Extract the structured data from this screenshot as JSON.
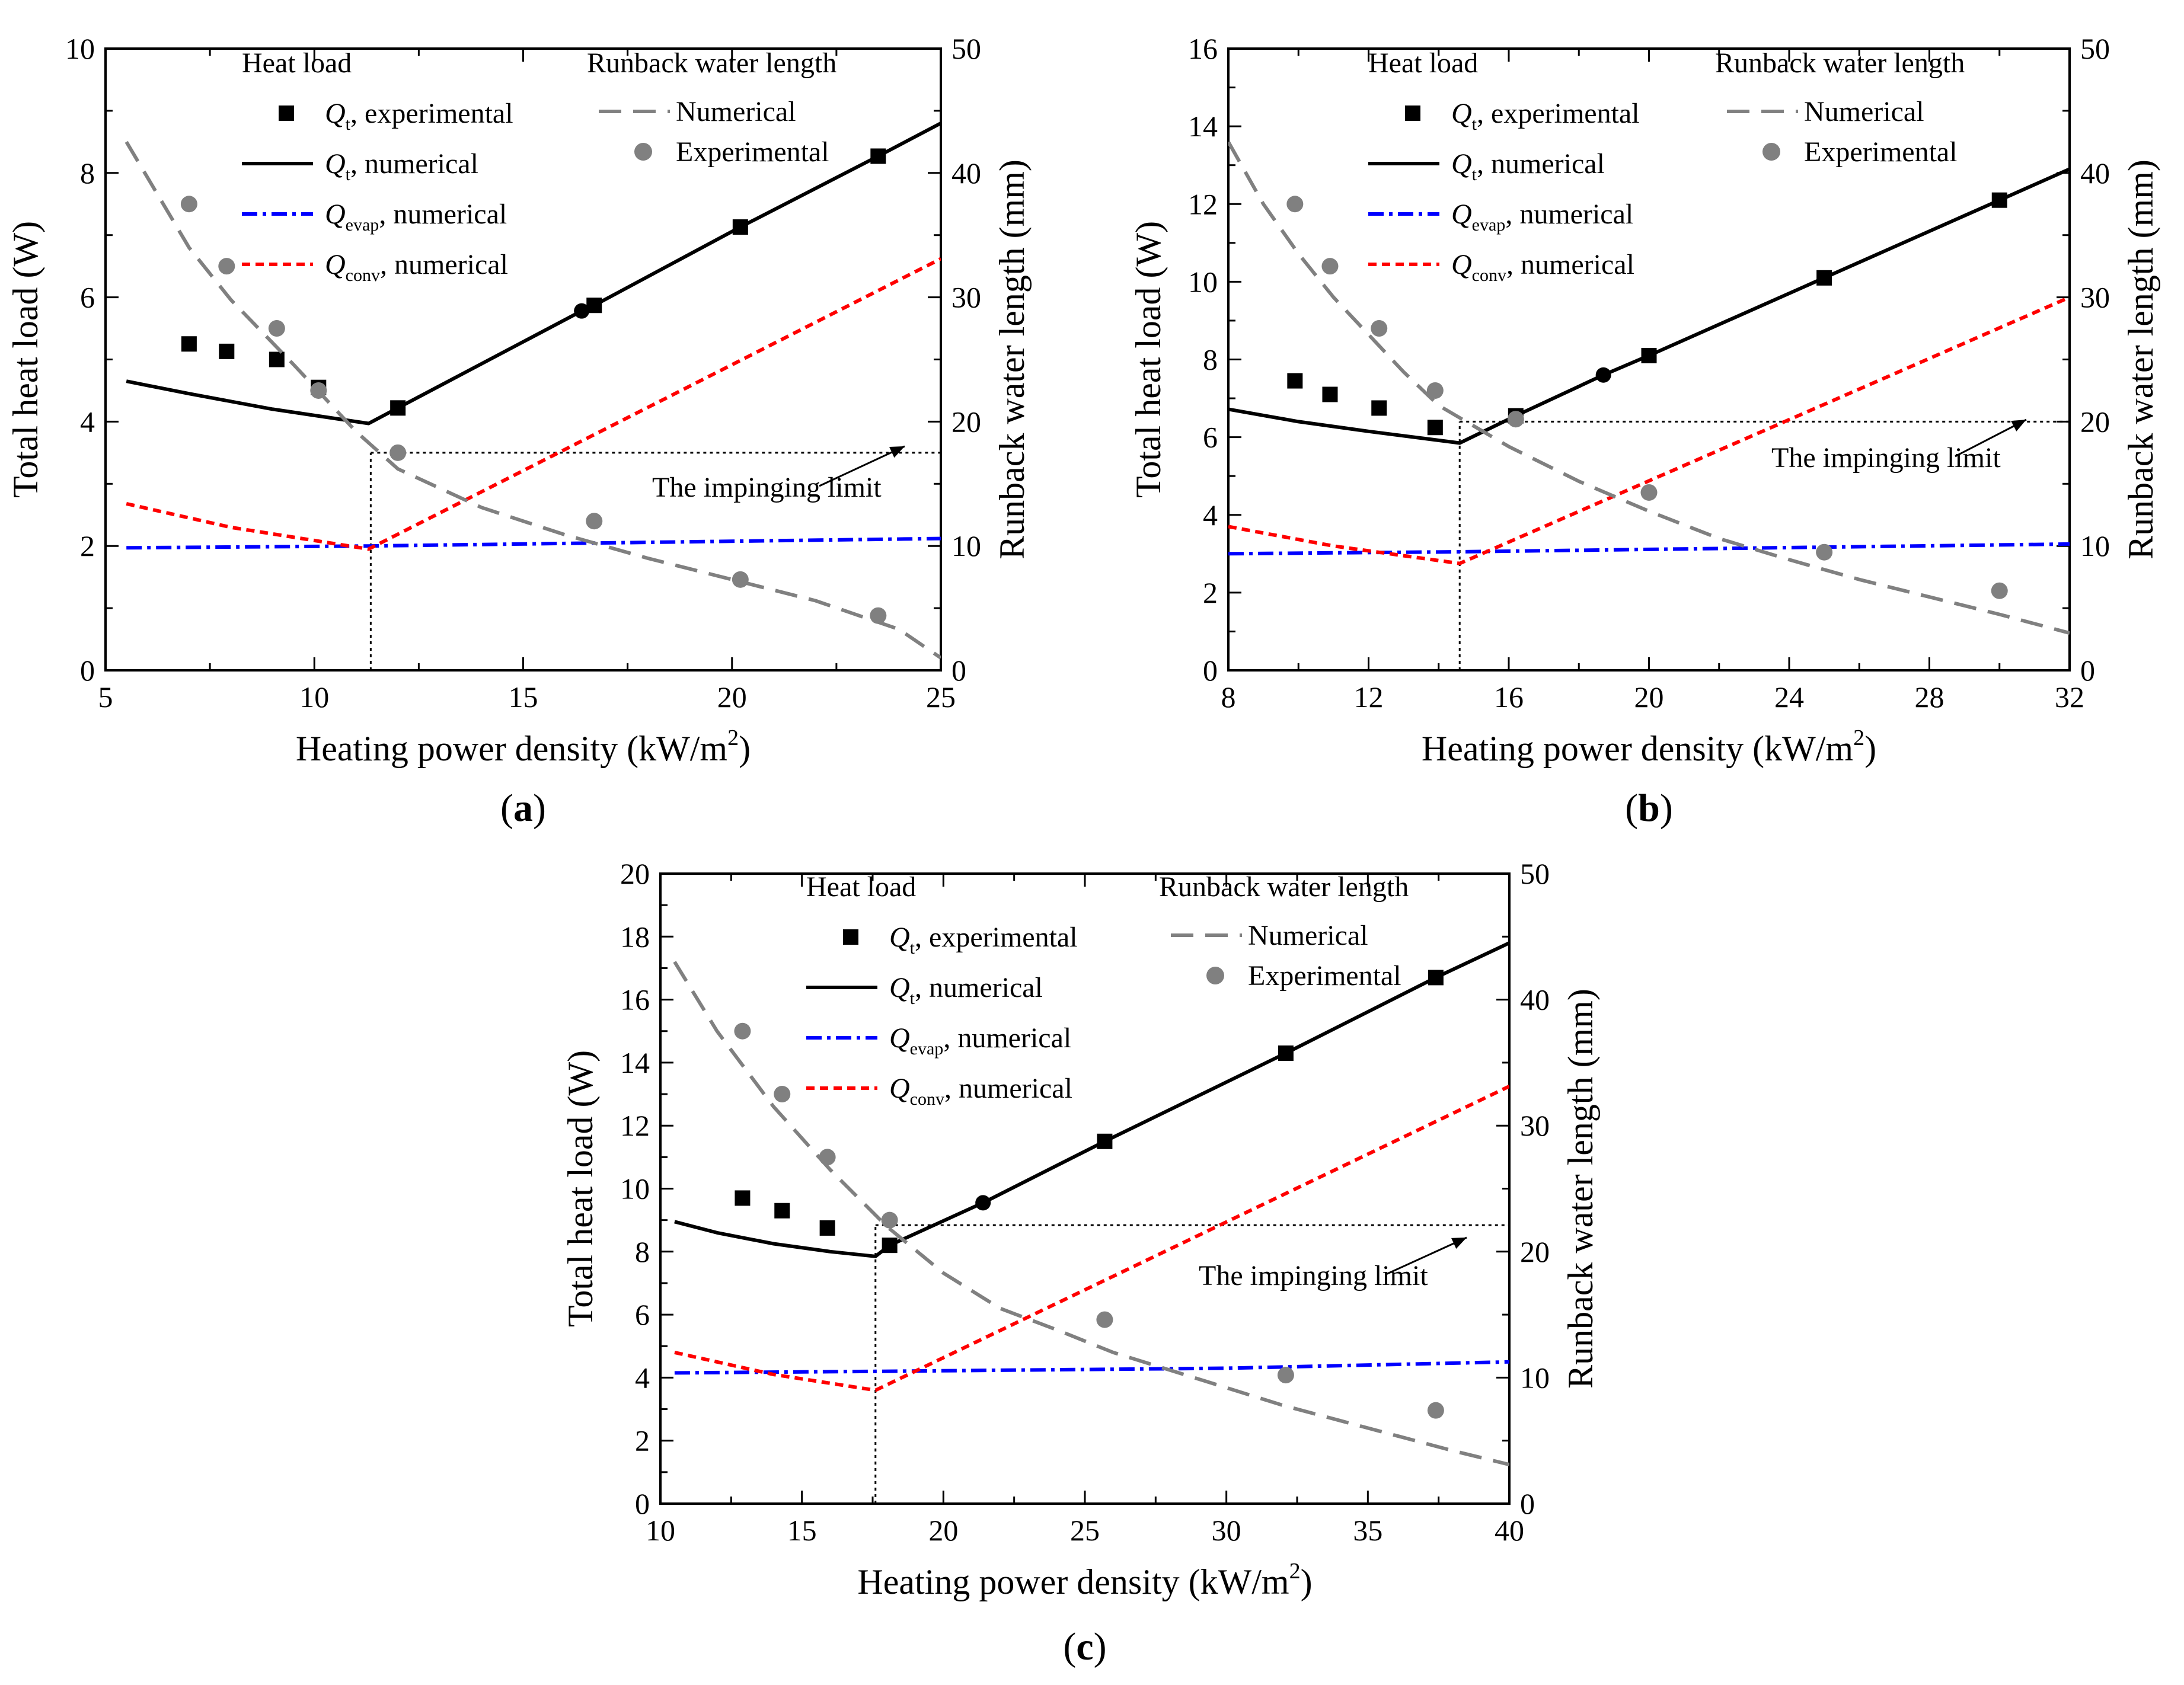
{
  "figure": {
    "legend": {
      "heat_load_title": "Heat load",
      "runback_title": "Runback water length",
      "qt_exp": ", experimental",
      "qt_num": ", numerical",
      "qevap_num": ", numerical",
      "qconv_num": ", numerical",
      "rb_num": "Numerical",
      "rb_exp": "Experimental",
      "q_symbol": "Q",
      "sub_t": "t",
      "sub_evap": "evap",
      "sub_conv": "conv"
    },
    "annotation": "The impinging limit",
    "colors": {
      "qt": "#000000",
      "qevap": "#0000ff",
      "qconv": "#ff0000",
      "runback": "#808080"
    }
  },
  "chart_data": [
    {
      "type": "line",
      "panel_label_open": "(",
      "panel_label_letter": "a",
      "panel_label_close": ")",
      "xlabel": "Heating power density (kW/m",
      "xlabel_sup": "2",
      "xlabel_close": ")",
      "ylabel": "Total heat load (W)",
      "y2label": "Runback water length (mm)",
      "xlim": [
        5,
        25
      ],
      "ylim": [
        0,
        10
      ],
      "y2lim": [
        0,
        50
      ],
      "xticks": [
        5,
        10,
        15,
        20,
        25
      ],
      "yticks": [
        0,
        2,
        4,
        6,
        8,
        10
      ],
      "y2ticks": [
        0,
        10,
        20,
        30,
        40,
        50
      ],
      "limit": {
        "x": 11.35,
        "y2": 17.5
      },
      "series": [
        {
          "name": "Qt, experimental",
          "axis": "left",
          "style": "square",
          "x": [
            7.0,
            7.9,
            9.1,
            10.1
          ],
          "y": [
            5.25,
            5.13,
            5.0,
            4.55
          ]
        },
        {
          "name": "Qt, numerical",
          "axis": "left",
          "style": "solid",
          "x": [
            5.5,
            7.0,
            9.0,
            11.3,
            12.0,
            16.4,
            16.7,
            20.2,
            23.5,
            25.0
          ],
          "y": [
            4.65,
            4.45,
            4.2,
            3.97,
            4.22,
            5.78,
            5.87,
            7.13,
            8.27,
            8.8
          ],
          "markers": [
            {
              "x": 12.0,
              "y": 4.22,
              "m": "square"
            },
            {
              "x": 16.4,
              "y": 5.78,
              "m": "circle"
            },
            {
              "x": 16.7,
              "y": 5.87,
              "m": "square"
            },
            {
              "x": 20.2,
              "y": 7.13,
              "m": "square"
            },
            {
              "x": 23.5,
              "y": 8.27,
              "m": "square"
            }
          ]
        },
        {
          "name": "Qevap, numerical",
          "axis": "left",
          "style": "dashdot",
          "x": [
            5.5,
            11.3,
            25.0
          ],
          "y": [
            1.97,
            2.0,
            2.12
          ]
        },
        {
          "name": "Qconv, numerical",
          "axis": "left",
          "style": "dash",
          "x": [
            5.5,
            8.0,
            11.3,
            25.0
          ],
          "y": [
            2.68,
            2.3,
            1.95,
            6.62
          ]
        },
        {
          "name": "Runback, numerical",
          "axis": "right",
          "style": "longdash",
          "x": [
            5.5,
            7.0,
            8.0,
            9.5,
            11.0,
            12.0,
            14.0,
            16.0,
            18.0,
            20.0,
            22.0,
            24.0,
            25.0
          ],
          "y": [
            42.5,
            34.0,
            29.8,
            24.6,
            19.2,
            16.2,
            13.1,
            10.9,
            9.0,
            7.3,
            5.6,
            3.3,
            1.0
          ]
        },
        {
          "name": "Runback, experimental",
          "axis": "right",
          "style": "circle",
          "x": [
            7.0,
            7.9,
            9.1,
            10.1,
            12.0,
            16.7,
            20.2,
            23.5
          ],
          "y": [
            37.5,
            32.5,
            27.5,
            22.5,
            17.5,
            12.0,
            7.3,
            4.4
          ]
        }
      ]
    },
    {
      "type": "line",
      "panel_label_open": "(",
      "panel_label_letter": "b",
      "panel_label_close": ")",
      "xlabel": "Heating power density (kW/m",
      "xlabel_sup": "2",
      "xlabel_close": ")",
      "ylabel": "Total heat load (W)",
      "y2label": "Runback water length (mm)",
      "xlim": [
        8,
        32
      ],
      "ylim": [
        0,
        16
      ],
      "y2lim": [
        0,
        50
      ],
      "xticks": [
        8,
        12,
        16,
        20,
        24,
        28,
        32
      ],
      "yticks": [
        0,
        2,
        4,
        6,
        8,
        10,
        12,
        14,
        16
      ],
      "y2ticks": [
        0,
        10,
        20,
        30,
        40,
        50
      ],
      "limit": {
        "x": 14.6,
        "y2": 20.0
      },
      "series": [
        {
          "name": "Qt, experimental",
          "axis": "left",
          "style": "square",
          "x": [
            9.9,
            10.9,
            12.3,
            13.9
          ],
          "y": [
            7.45,
            7.1,
            6.75,
            6.25
          ]
        },
        {
          "name": "Qt, numerical",
          "axis": "left",
          "style": "solid",
          "x": [
            8.0,
            10.0,
            12.0,
            14.6,
            16.2,
            18.7,
            20.0,
            25.0,
            30.0,
            32.0
          ],
          "y": [
            6.72,
            6.4,
            6.15,
            5.85,
            6.55,
            7.6,
            8.1,
            10.1,
            12.1,
            12.9
          ],
          "markers": [
            {
              "x": 16.2,
              "y": 6.55,
              "m": "square"
            },
            {
              "x": 18.7,
              "y": 7.6,
              "m": "circle"
            },
            {
              "x": 20.0,
              "y": 8.1,
              "m": "square"
            },
            {
              "x": 25.0,
              "y": 10.1,
              "m": "square"
            },
            {
              "x": 30.0,
              "y": 12.1,
              "m": "square"
            }
          ]
        },
        {
          "name": "Qevap, numerical",
          "axis": "left",
          "style": "dashdot",
          "x": [
            8.0,
            14.6,
            32.0
          ],
          "y": [
            3.0,
            3.05,
            3.25
          ]
        },
        {
          "name": "Qconv, numerical",
          "axis": "left",
          "style": "dash",
          "x": [
            8.0,
            11.0,
            14.6,
            32.0
          ],
          "y": [
            3.7,
            3.2,
            2.75,
            9.6
          ]
        },
        {
          "name": "Runback, numerical",
          "axis": "right",
          "style": "longdash",
          "x": [
            8.0,
            9.0,
            10.0,
            11.0,
            12.0,
            13.0,
            14.0,
            16.0,
            18.0,
            20.0,
            22.0,
            24.0,
            26.0,
            28.0,
            30.0,
            32.0
          ],
          "y": [
            42.5,
            37.5,
            33.5,
            30.0,
            27.0,
            24.0,
            21.3,
            18.0,
            15.2,
            12.8,
            10.6,
            8.9,
            7.3,
            5.9,
            4.5,
            3.0
          ]
        },
        {
          "name": "Runback, experimental",
          "axis": "right",
          "style": "circle",
          "x": [
            9.9,
            10.9,
            12.3,
            13.9,
            16.2,
            20.0,
            25.0,
            30.0
          ],
          "y": [
            37.5,
            32.5,
            27.5,
            22.5,
            20.2,
            14.3,
            9.5,
            6.4
          ]
        }
      ]
    },
    {
      "type": "line",
      "panel_label_open": "(",
      "panel_label_letter": "c",
      "panel_label_close": ")",
      "xlabel": "Heating power density (kW/m",
      "xlabel_sup": "2",
      "xlabel_close": ")",
      "ylabel": "Total heat load (W)",
      "y2label": "Runback water length (mm)",
      "xlim": [
        10,
        40
      ],
      "ylim": [
        0,
        20
      ],
      "y2lim": [
        0,
        50
      ],
      "xticks": [
        10,
        15,
        20,
        25,
        30,
        35,
        40
      ],
      "yticks": [
        0,
        2,
        4,
        6,
        8,
        10,
        12,
        14,
        16,
        18,
        20
      ],
      "y2ticks": [
        0,
        10,
        20,
        30,
        40,
        50
      ],
      "limit": {
        "x": 17.6,
        "y2": 22.1
      },
      "series": [
        {
          "name": "Qt, experimental",
          "axis": "left",
          "style": "square",
          "x": [
            12.9,
            14.3,
            15.9
          ],
          "y": [
            9.7,
            9.3,
            8.75
          ]
        },
        {
          "name": "Qt, numerical",
          "axis": "left",
          "style": "solid",
          "x": [
            10.5,
            12.0,
            14.0,
            16.0,
            17.6,
            18.1,
            21.4,
            25.7,
            32.1,
            37.4,
            40.0
          ],
          "y": [
            8.95,
            8.6,
            8.25,
            8.0,
            7.85,
            8.2,
            9.55,
            11.5,
            14.3,
            16.7,
            17.8
          ],
          "markers": [
            {
              "x": 18.1,
              "y": 8.2,
              "m": "square"
            },
            {
              "x": 21.4,
              "y": 9.55,
              "m": "circle"
            },
            {
              "x": 25.7,
              "y": 11.5,
              "m": "square"
            },
            {
              "x": 32.1,
              "y": 14.3,
              "m": "square"
            },
            {
              "x": 37.4,
              "y": 16.7,
              "m": "square"
            }
          ]
        },
        {
          "name": "Qevap, numerical",
          "axis": "left",
          "style": "dashdot",
          "x": [
            10.5,
            17.6,
            30.0,
            40.0
          ],
          "y": [
            4.15,
            4.2,
            4.3,
            4.5
          ]
        },
        {
          "name": "Qconv, numerical",
          "axis": "left",
          "style": "dash",
          "x": [
            10.5,
            14.0,
            17.6,
            40.0
          ],
          "y": [
            4.8,
            4.1,
            3.6,
            13.25
          ]
        },
        {
          "name": "Runback, numerical",
          "axis": "right",
          "style": "longdash",
          "x": [
            10.5,
            12.0,
            14.0,
            16.0,
            18.0,
            20.0,
            22.0,
            24.0,
            26.0,
            28.0,
            30.0,
            32.0,
            34.0,
            36.0,
            38.0,
            40.0
          ],
          "y": [
            43.0,
            37.5,
            31.5,
            26.5,
            22.0,
            18.3,
            15.5,
            13.8,
            12.0,
            10.6,
            9.2,
            7.8,
            6.6,
            5.4,
            4.2,
            3.1
          ]
        },
        {
          "name": "Runback, experimental",
          "axis": "right",
          "style": "circle",
          "x": [
            12.9,
            14.3,
            15.9,
            18.1,
            25.7,
            32.1,
            37.4
          ],
          "y": [
            37.5,
            32.5,
            27.5,
            22.5,
            14.6,
            10.2,
            7.4
          ]
        }
      ]
    }
  ]
}
